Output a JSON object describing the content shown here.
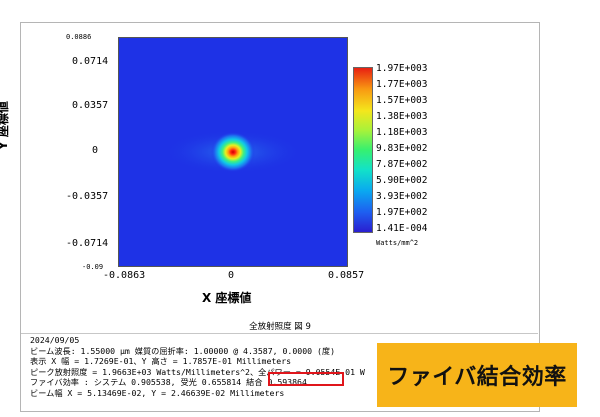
{
  "figure": {
    "corner_value": "0.0886",
    "bottom_left_value": "-0.09",
    "y_ticks": [
      "0.0714",
      "0.0357",
      "0",
      "-0.0357",
      "-0.0714"
    ],
    "x_ticks": [
      "-0.0863",
      "0",
      "0.0857"
    ],
    "x_axis_title": "X 座標値",
    "y_axis_title": "Y 座標値",
    "colorbar_labels": [
      "1.97E+003",
      "1.77E+003",
      "1.57E+003",
      "1.38E+003",
      "1.18E+003",
      "9.83E+002",
      "7.87E+002",
      "5.90E+002",
      "3.93E+002",
      "1.97E+002",
      "1.41E-004"
    ],
    "colorbar_units": "Watts/mm^2",
    "figure_title": "全放射照度 図 9",
    "colors": {
      "peak": "#e81010",
      "background": "#1e32e6",
      "callout": "#f7b419",
      "highlight": "#e0151b"
    }
  },
  "info": {
    "date": "2024/09/05",
    "line1": "ビーム波長: 1.55000 μm  媒質の屈折率: 1.00000 @ 4.3587, 0.0000 (度)",
    "line2": "表示 X 幅 = 1.7269E-01、Y 高さ = 1.7857E-01 Millimeters",
    "line3": "ピーク放射照度 = 1.9663E+03 Watts/Millimeters^2、全パワー = 9.0554E-01 W",
    "line4_prefix": "ファイバ効率         : システム 0.905538, 受光 0.655814",
    "coupling": "結合 0.593864",
    "line5": "ビーム幅 X = 5.13469E-02, Y = 2.46639E-02 Millimeters"
  },
  "callout": {
    "text": "ファイバ結合効率"
  },
  "chart_data": {
    "type": "heatmap",
    "title": "全放射照度 図 9",
    "xlabel": "X 座標値",
    "ylabel": "Y 座標値",
    "xlim": [
      -0.0863,
      0.0857
    ],
    "ylim": [
      -0.09,
      0.0886
    ],
    "peak": {
      "x": 0,
      "y": 0,
      "value": 1966.3
    },
    "beam_width": {
      "x": 0.0513469,
      "y": 0.0246639
    },
    "colorbar": {
      "min": 0.000141,
      "max": 1970,
      "units": "Watts/mm^2"
    }
  }
}
